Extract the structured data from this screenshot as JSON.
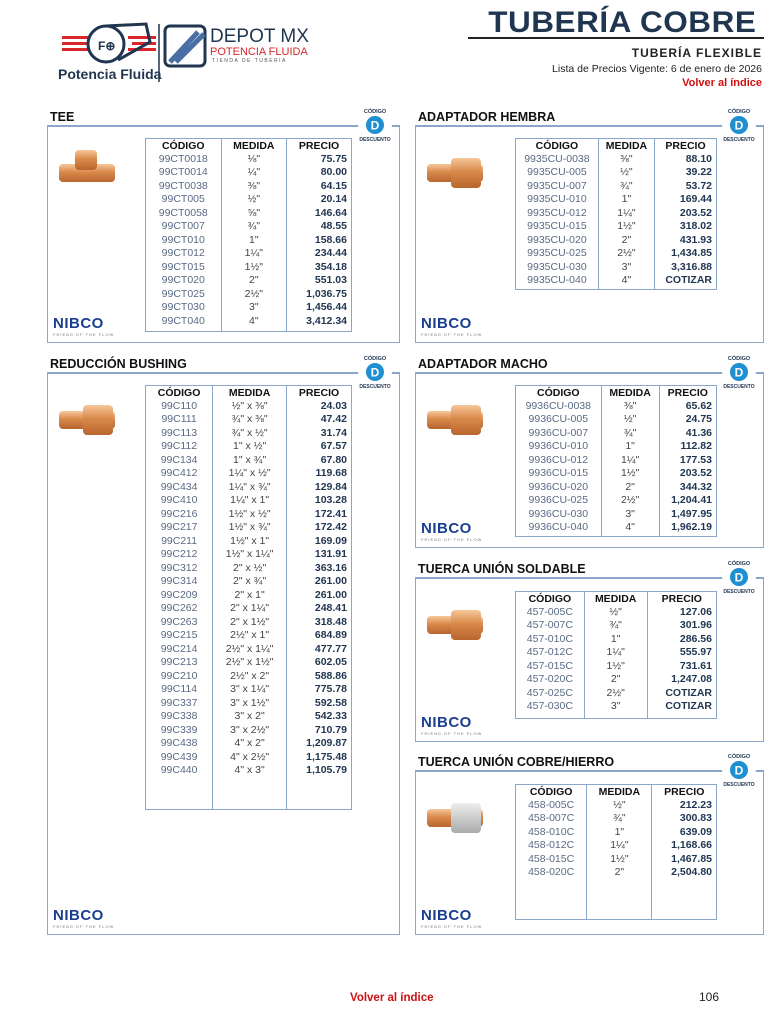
{
  "header": {
    "logo_left_text": "Potencia Fluida",
    "logo_right_line1": "DEPOT MX",
    "logo_right_line2": "POTENCIA FLUIDA",
    "logo_right_line3": "TIENDA DE TUBERIA",
    "title": "TUBERÍA COBRE",
    "subtitle": "TUBERÍA FLEXIBLE",
    "price_date": "Lista de Precios Vigente: 6 de enero de 2026",
    "back_link": "Volver al índice"
  },
  "badge": {
    "top": "CÓDIGO",
    "letter": "D",
    "bottom": "DESCUENTO"
  },
  "brand": {
    "name": "NIBCO",
    "tagline": "FRIEND OF THE FLOW"
  },
  "columns": {
    "code": "CÓDIGO",
    "size": "MEDIDA",
    "price": "PRECIO"
  },
  "colors": {
    "accent_red": "#d01010",
    "title_navy": "#1f3550",
    "border_blue": "#8aa6c8",
    "nibco_blue": "#1c3f8f"
  },
  "sections": [
    {
      "title": "TEE",
      "rows": [
        [
          "99CT0018",
          "⅛\"",
          "75.75"
        ],
        [
          "99CT0014",
          "¼\"",
          "80.00"
        ],
        [
          "99CT0038",
          "⅜\"",
          "64.15"
        ],
        [
          "99CT005",
          "½\"",
          "20.14"
        ],
        [
          "99CT0058",
          "⅝\"",
          "146.64"
        ],
        [
          "99CT007",
          "¾\"",
          "48.55"
        ],
        [
          "99CT010",
          "1\"",
          "158.66"
        ],
        [
          "99CT012",
          "1¼\"",
          "234.44"
        ],
        [
          "99CT015",
          "1½\"",
          "354.18"
        ],
        [
          "99CT020",
          "2\"",
          "551.03"
        ],
        [
          "99CT025",
          "2½\"",
          "1,036.75"
        ],
        [
          "99CT030",
          "3\"",
          "1,456.44"
        ],
        [
          "99CT040",
          "4\"",
          "3,412.34"
        ]
      ]
    },
    {
      "title": "ADAPTADOR HEMBRA",
      "rows": [
        [
          "9935CU-0038",
          "⅜\"",
          "88.10"
        ],
        [
          "9935CU-005",
          "½\"",
          "39.22"
        ],
        [
          "9935CU-007",
          "¾\"",
          "53.72"
        ],
        [
          "9935CU-010",
          "1\"",
          "169.44"
        ],
        [
          "9935CU-012",
          "1¼\"",
          "203.52"
        ],
        [
          "9935CU-015",
          "1½\"",
          "318.02"
        ],
        [
          "9935CU-020",
          "2\"",
          "431.93"
        ],
        [
          "9935CU-025",
          "2½\"",
          "1,434.85"
        ],
        [
          "9935CU-030",
          "3\"",
          "3,316.88"
        ],
        [
          "9935CU-040",
          "4\"",
          "COTIZAR"
        ]
      ]
    },
    {
      "title": "REDUCCIÓN BUSHING",
      "rows": [
        [
          "99C110",
          "½\" x ⅜\"",
          "24.03"
        ],
        [
          "99C111",
          "¾\" x ⅜\"",
          "47.42"
        ],
        [
          "99C113",
          "¾\" x ½\"",
          "31.74"
        ],
        [
          "99C112",
          "1\" x ½\"",
          "67.57"
        ],
        [
          "99C134",
          "1\" x ¾\"",
          "67.80"
        ],
        [
          "99C412",
          "1¼\" x ½\"",
          "119.68"
        ],
        [
          "99C434",
          "1¼\" x ¾\"",
          "129.84"
        ],
        [
          "99C410",
          "1¼\" x 1\"",
          "103.28"
        ],
        [
          "99C216",
          "1½\" x ½\"",
          "172.41"
        ],
        [
          "99C217",
          "1½\" x ¾\"",
          "172.42"
        ],
        [
          "99C211",
          "1½\" x 1\"",
          "169.09"
        ],
        [
          "99C212",
          "1½\" x 1¼\"",
          "131.91"
        ],
        [
          "99C312",
          "2\" x ½\"",
          "363.16"
        ],
        [
          "99C314",
          "2\" x ¾\"",
          "261.00"
        ],
        [
          "99C209",
          "2\" x 1\"",
          "261.00"
        ],
        [
          "99C262",
          "2\" x 1¼\"",
          "248.41"
        ],
        [
          "99C263",
          "2\" x 1½\"",
          "318.48"
        ],
        [
          "99C215",
          "2½\" x 1\"",
          "684.89"
        ],
        [
          "99C214",
          "2½\" x 1¼\"",
          "477.77"
        ],
        [
          "99C213",
          "2½\" x 1½\"",
          "602.05"
        ],
        [
          "99C210",
          "2½\" x 2\"",
          "588.86"
        ],
        [
          "99C114",
          "3\" x 1¼\"",
          "775.78"
        ],
        [
          "99C337",
          "3\" x 1½\"",
          "592.58"
        ],
        [
          "99C338",
          "3\" x 2\"",
          "542.33"
        ],
        [
          "99C339",
          "3\" x 2½\"",
          "710.79"
        ],
        [
          "99C438",
          "4\" x 2\"",
          "1,209.87"
        ],
        [
          "99C439",
          "4\" x 2½\"",
          "1,175.48"
        ],
        [
          "99C440",
          "4\" x 3\"",
          "1,105.79"
        ]
      ]
    },
    {
      "title": "ADAPTADOR MACHO",
      "rows": [
        [
          "9936CU-0038",
          "⅜\"",
          "65.62"
        ],
        [
          "9936CU-005",
          "½\"",
          "24.75"
        ],
        [
          "9936CU-007",
          "¾\"",
          "41.36"
        ],
        [
          "9936CU-010",
          "1\"",
          "112.82"
        ],
        [
          "9936CU-012",
          "1¼\"",
          "177.53"
        ],
        [
          "9936CU-015",
          "1½\"",
          "203.52"
        ],
        [
          "9936CU-020",
          "2\"",
          "344.32"
        ],
        [
          "9936CU-025",
          "2½\"",
          "1,204.41"
        ],
        [
          "9936CU-030",
          "3\"",
          "1,497.95"
        ],
        [
          "9936CU-040",
          "4\"",
          "1,962.19"
        ]
      ]
    },
    {
      "title": "TUERCA UNIÓN SOLDABLE",
      "rows": [
        [
          "457-005C",
          "½\"",
          "127.06"
        ],
        [
          "457-007C",
          "¾\"",
          "301.96"
        ],
        [
          "457-010C",
          "1\"",
          "286.56"
        ],
        [
          "457-012C",
          "1¼\"",
          "555.97"
        ],
        [
          "457-015C",
          "1½\"",
          "731.61"
        ],
        [
          "457-020C",
          "2\"",
          "1,247.08"
        ],
        [
          "457-025C",
          "2½\"",
          "COTIZAR"
        ],
        [
          "457-030C",
          "3\"",
          "COTIZAR"
        ]
      ]
    },
    {
      "title": "TUERCA UNIÓN COBRE/HIERRO",
      "rows": [
        [
          "458-005C",
          "½\"",
          "212.23"
        ],
        [
          "458-007C",
          "¾\"",
          "300.83"
        ],
        [
          "458-010C",
          "1\"",
          "639.09"
        ],
        [
          "458-012C",
          "1¼\"",
          "1,168.66"
        ],
        [
          "458-015C",
          "1½\"",
          "1,467.85"
        ],
        [
          "458-020C",
          "2\"",
          "2,504.80"
        ]
      ]
    }
  ],
  "footer": {
    "back_link": "Volver al índice",
    "page_number": "106"
  }
}
